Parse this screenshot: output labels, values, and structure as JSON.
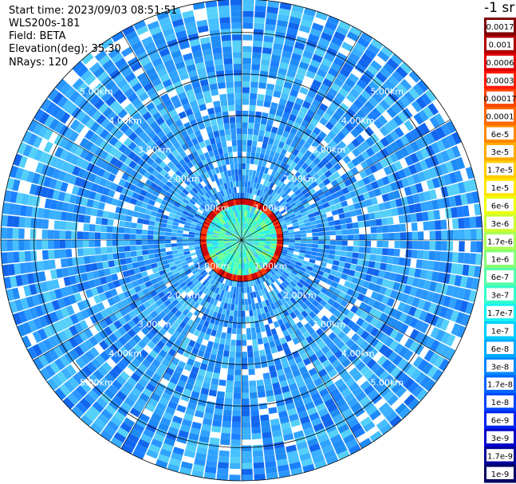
{
  "header": {
    "start_time": "Start time: 2023/09/03 08:51:51",
    "instrument": "WLS200s-181",
    "field": "Field: BETA",
    "elevation": "Elevation(deg): 35.30",
    "nrays": "NRays: 120"
  },
  "colorbar": {
    "unit": "-1 sr",
    "labels": [
      "0.0017",
      "0.001",
      "0.0006",
      "0.0003",
      "0.00017",
      "0.0001",
      "6e-5",
      "3e-5",
      "1.7e-5",
      "1e-5",
      "6e-6",
      "3e-6",
      "1.7e-6",
      "1e-6",
      "6e-7",
      "3e-7",
      "1.7e-7",
      "1e-7",
      "6e-8",
      "3e-8",
      "1.7e-8",
      "1e-8",
      "6e-9",
      "3e-9",
      "1.7e-9",
      "1e-9"
    ],
    "colors": [
      "#800000",
      "#b00000",
      "#e00000",
      "#ff1a00",
      "#ff4400",
      "#ff6600",
      "#ff8800",
      "#ffaa00",
      "#ffcc00",
      "#ffe600",
      "#eeff10",
      "#ccff33",
      "#aaff55",
      "#88ff77",
      "#55ffa8",
      "#33ffcc",
      "#18f0f0",
      "#00ccff",
      "#00aaff",
      "#0088ff",
      "#0066ff",
      "#0044ff",
      "#0022ee",
      "#0000cc",
      "#000099",
      "#000066"
    ]
  },
  "chart_data": {
    "type": "heatmap",
    "projection": "polar PPI",
    "field": "BETA",
    "nrays": 120,
    "max_range_km": 5.8,
    "ring_labels": [
      "1.00km",
      "2.00km",
      "3.00km",
      "4.00km",
      "5.00km"
    ],
    "description_of_field": [
      {
        "region": "inner disk",
        "range_km": [
          0,
          0.85
        ],
        "value_approx": "1.7e-7"
      },
      {
        "region": "aerosol/cloud ring",
        "range_km": [
          0.85,
          1.0
        ],
        "value_approx": "0.0003"
      },
      {
        "region": "background",
        "range_km": [
          1.0,
          5.8
        ],
        "value_approx": "1e-8"
      }
    ]
  }
}
